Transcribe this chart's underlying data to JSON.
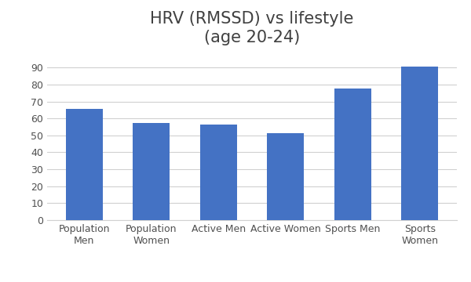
{
  "title": "HRV (RMSSD) vs lifestyle\n(age 20-24)",
  "categories": [
    "Population\nMen",
    "Population\nWomen",
    "Active Men",
    "Active Women",
    "Sports Men",
    "Sports\nWomen"
  ],
  "values": [
    65.5,
    57.5,
    56.5,
    51.5,
    77.5,
    90.5
  ],
  "bar_color": "#4472C4",
  "ylim": [
    0,
    100
  ],
  "yticks": [
    0,
    10,
    20,
    30,
    40,
    50,
    60,
    70,
    80,
    90
  ],
  "title_fontsize": 15,
  "tick_fontsize": 9,
  "background_color": "#ffffff",
  "grid_color": "#d0d0d0"
}
